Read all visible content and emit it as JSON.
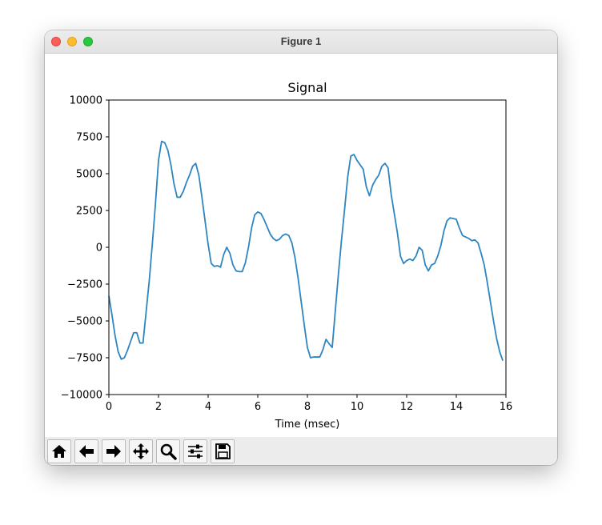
{
  "window": {
    "title": "Figure 1"
  },
  "toolbar": {
    "buttons": [
      {
        "name": "home-button",
        "icon": "home-icon"
      },
      {
        "name": "back-button",
        "icon": "arrow-left-icon"
      },
      {
        "name": "forward-button",
        "icon": "arrow-right-icon"
      },
      {
        "name": "pan-button",
        "icon": "move-icon"
      },
      {
        "name": "zoom-button",
        "icon": "magnifier-icon"
      },
      {
        "name": "configure-subplots-button",
        "icon": "sliders-icon"
      },
      {
        "name": "save-button",
        "icon": "floppy-disk-icon"
      }
    ]
  },
  "chart_data": {
    "type": "line",
    "title": "Signal",
    "xlabel": "Time (msec)",
    "ylabel": "",
    "xlim": [
      0,
      16
    ],
    "ylim": [
      -10000,
      10000
    ],
    "xticks": [
      "0",
      "2",
      "4",
      "6",
      "8",
      "10",
      "12",
      "14",
      "16"
    ],
    "yticks": [
      "10000",
      "7500",
      "5000",
      "2500",
      "0",
      "−2500",
      "−5000",
      "−7500",
      "−10000"
    ],
    "grid": false,
    "line_color": "#2e86c1",
    "x": [
      0,
      0.125,
      0.25,
      0.375,
      0.5,
      0.625,
      0.75,
      0.875,
      1.0,
      1.125,
      1.25,
      1.375,
      1.5,
      1.625,
      1.75,
      1.875,
      2.0,
      2.125,
      2.25,
      2.375,
      2.5,
      2.625,
      2.75,
      2.875,
      3.0,
      3.125,
      3.25,
      3.375,
      3.5,
      3.625,
      3.75,
      3.875,
      4.0,
      4.125,
      4.25,
      4.375,
      4.5,
      4.625,
      4.75,
      4.875,
      5.0,
      5.125,
      5.25,
      5.375,
      5.5,
      5.625,
      5.75,
      5.875,
      6.0,
      6.125,
      6.25,
      6.375,
      6.5,
      6.625,
      6.75,
      6.875,
      7.0,
      7.125,
      7.25,
      7.375,
      7.5,
      7.625,
      7.75,
      7.875,
      8.0,
      8.125,
      8.25,
      8.375,
      8.5,
      8.625,
      8.75,
      8.875,
      9.0,
      9.125,
      9.25,
      9.375,
      9.5,
      9.625,
      9.75,
      9.875,
      10.0,
      10.125,
      10.25,
      10.375,
      10.5,
      10.625,
      10.75,
      10.875,
      11.0,
      11.125,
      11.25,
      11.375,
      11.5,
      11.625,
      11.75,
      11.875,
      12.0,
      12.125,
      12.25,
      12.375,
      12.5,
      12.625,
      12.75,
      12.875,
      13.0,
      13.125,
      13.25,
      13.375,
      13.5,
      13.625,
      13.75,
      13.875,
      14.0,
      14.125,
      14.25,
      14.375,
      14.5,
      14.625,
      14.75,
      14.875,
      15.0,
      15.125,
      15.25,
      15.375,
      15.5,
      15.625,
      15.75,
      15.875
    ],
    "y": [
      -3300,
      -4600,
      -6000,
      -7100,
      -7600,
      -7500,
      -7000,
      -6400,
      -5800,
      -5800,
      -6500,
      -6500,
      -4400,
      -2300,
      200,
      2900,
      5900,
      7200,
      7100,
      6600,
      5600,
      4300,
      3400,
      3400,
      3800,
      4400,
      4900,
      5500,
      5700,
      4900,
      3400,
      1800,
      200,
      -1100,
      -1300,
      -1250,
      -1350,
      -500,
      0,
      -400,
      -1200,
      -1600,
      -1650,
      -1650,
      -1050,
      0,
      1300,
      2200,
      2400,
      2300,
      1900,
      1400,
      900,
      600,
      450,
      550,
      800,
      900,
      800,
      300,
      -700,
      -2100,
      -3700,
      -5300,
      -6800,
      -7500,
      -7450,
      -7450,
      -7450,
      -6950,
      -6250,
      -6550,
      -6800,
      -4300,
      -1800,
      500,
      2600,
      4800,
      6200,
      6300,
      5900,
      5600,
      5300,
      4100,
      3500,
      4200,
      4600,
      4900,
      5500,
      5700,
      5400,
      3600,
      2300,
      1000,
      -600,
      -1100,
      -900,
      -800,
      -900,
      -600,
      0,
      -200,
      -1200,
      -1600,
      -1200,
      -1100,
      -600,
      100,
      1100,
      1800,
      2000,
      1950,
      1900,
      1300,
      800,
      700,
      600,
      450,
      500,
      300,
      -400,
      -1200,
      -2400,
      -3700,
      -5000,
      -6200,
      -7100,
      -7700
    ]
  }
}
